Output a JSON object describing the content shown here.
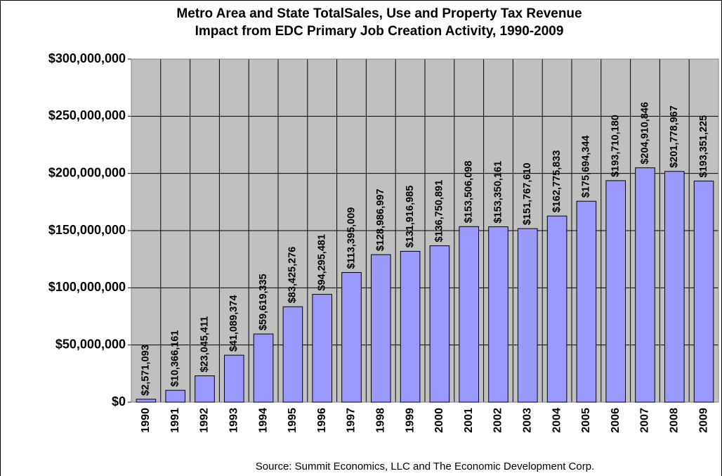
{
  "chart_data": {
    "type": "bar",
    "title": [
      "Metro Area and State TotalSales, Use and Property Tax Revenue",
      "Impact from EDC Primary Job Creation Activity, 1990-2009"
    ],
    "source": "Source: Summit Economics, LLC  and The Economic Development Corp.",
    "categories": [
      "1990",
      "1991",
      "1992",
      "1993",
      "1994",
      "1995",
      "1996",
      "1997",
      "1998",
      "1999",
      "2000",
      "2001",
      "2002",
      "2003",
      "2004",
      "2005",
      "2006",
      "2007",
      "2008",
      "2009"
    ],
    "values": [
      2571093,
      10366161,
      23045411,
      41089374,
      59619335,
      83425276,
      94295481,
      113395009,
      128986997,
      131916985,
      136750891,
      153506098,
      153350161,
      151767610,
      162775833,
      175694344,
      193710180,
      204910846,
      201778967,
      193351225
    ],
    "value_labels": [
      "$2,571,093",
      "$10,366,161",
      "$23,045,411",
      "$41,089,374",
      "$59,619,335",
      "$83,425,276",
      "$94,295,481",
      "$113,395,009",
      "$128,986,997",
      "$131,916,985",
      "$136,750,891",
      "$153,506,098",
      "$153,350,161",
      "$151,767,610",
      "$162,775,833",
      "$175,694,344",
      "$193,710,180",
      "$204,910,846",
      "$201,778,967",
      "$193,351,225"
    ],
    "color": "#9999ff",
    "ylim": [
      0,
      300000000
    ],
    "yticks": [
      {
        "value": 0,
        "label": "$0"
      },
      {
        "value": 50000000,
        "label": "$50,000,000"
      },
      {
        "value": 100000000,
        "label": "$100,000,000"
      },
      {
        "value": 150000000,
        "label": "$150,000,000"
      },
      {
        "value": 200000000,
        "label": "$200,000,000"
      },
      {
        "value": 250000000,
        "label": "$250,000,000"
      },
      {
        "value": 300000000,
        "label": "$300,000,000"
      }
    ],
    "grid": true
  }
}
